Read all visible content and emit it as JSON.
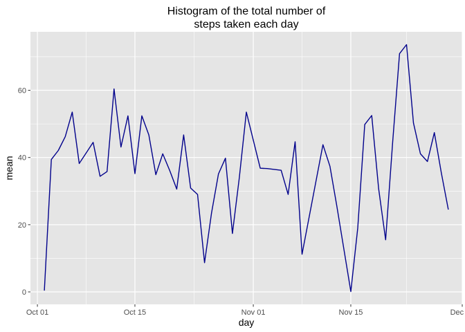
{
  "chart_data": {
    "type": "line",
    "title": "Histogram of the total number of\nsteps taken each day",
    "xlabel": "day",
    "ylabel": "mean",
    "xlim": [
      "2012-09-30",
      "2012-12-01"
    ],
    "ylim": [
      -3.7,
      77.4
    ],
    "x_ticks": [
      "2012-10-01",
      "2012-10-15",
      "2012-11-01",
      "2012-11-15",
      "2012-12-01"
    ],
    "x_tick_labels": [
      "Oct 01",
      "Oct 15",
      "Nov 01",
      "Nov 15",
      "Dec 01"
    ],
    "y_ticks": [
      0,
      20,
      40,
      60
    ],
    "y_tick_labels": [
      "0",
      "20",
      "40",
      "60"
    ],
    "grid": true,
    "colors": {
      "panel": "#e5e5e5",
      "grid": "#ffffff",
      "line": "#00008b",
      "tick_label": "#4d4d4d"
    },
    "series": [
      {
        "x": [
          "2012-10-02",
          "2012-10-03",
          "2012-10-04",
          "2012-10-05",
          "2012-10-06",
          "2012-10-07",
          "2012-10-09",
          "2012-10-10",
          "2012-10-11",
          "2012-10-12",
          "2012-10-13",
          "2012-10-14",
          "2012-10-15",
          "2012-10-16",
          "2012-10-17",
          "2012-10-18",
          "2012-10-19",
          "2012-10-20",
          "2012-10-21",
          "2012-10-22",
          "2012-10-23",
          "2012-10-24",
          "2012-10-25",
          "2012-10-26",
          "2012-10-27",
          "2012-10-28",
          "2012-10-29",
          "2012-10-30",
          "2012-10-31",
          "2012-11-02",
          "2012-11-03",
          "2012-11-05",
          "2012-11-06",
          "2012-11-07",
          "2012-11-08",
          "2012-11-11",
          "2012-11-12",
          "2012-11-13",
          "2012-11-15",
          "2012-11-16",
          "2012-11-17",
          "2012-11-18",
          "2012-11-19",
          "2012-11-20",
          "2012-11-21",
          "2012-11-22",
          "2012-11-23",
          "2012-11-24",
          "2012-11-25",
          "2012-11-26",
          "2012-11-27",
          "2012-11-28",
          "2012-11-29"
        ],
        "y": [
          0.4,
          39.4,
          42.1,
          46.2,
          53.5,
          38.2,
          44.5,
          34.4,
          35.8,
          60.4,
          43.1,
          52.4,
          35.2,
          52.4,
          46.7,
          34.9,
          41.1,
          36.1,
          30.6,
          46.7,
          30.9,
          29.0,
          8.7,
          23.5,
          35.1,
          39.8,
          17.4,
          34.1,
          53.5,
          36.8,
          36.7,
          36.2,
          29.0,
          44.7,
          11.2,
          43.8,
          37.4,
          25.5,
          0.1,
          19.0,
          49.8,
          52.5,
          30.7,
          15.5,
          44.4,
          70.9,
          73.6,
          50.3,
          41.1,
          38.8,
          47.4,
          35.4,
          24.5
        ]
      }
    ]
  }
}
